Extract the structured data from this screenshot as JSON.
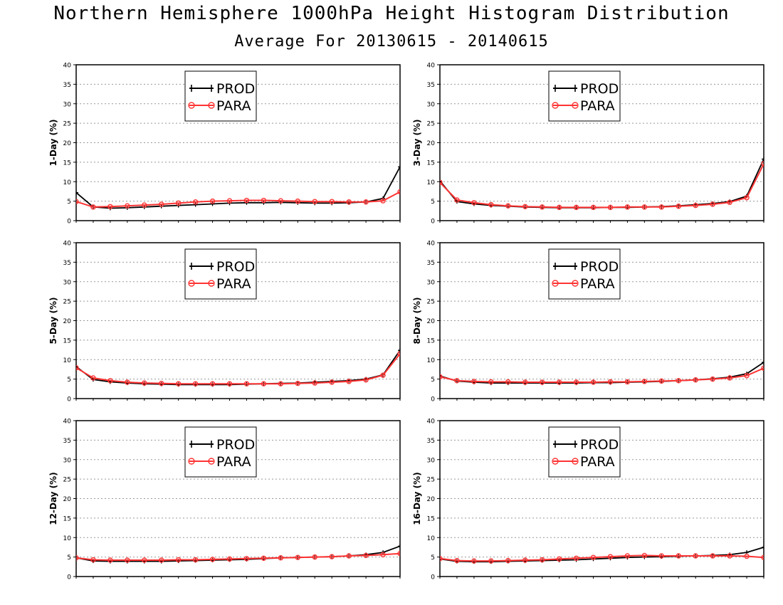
{
  "title": "Northern Hemisphere 1000hPa Height Histogram Distribution",
  "subtitle": "Average For 20130615 - 20140615",
  "chart_data": [
    {
      "type": "line",
      "ylabel": "1-Day (%)",
      "ylim": [
        0,
        40
      ],
      "yticks": [
        0,
        5,
        10,
        15,
        20,
        25,
        30,
        35,
        40
      ],
      "grid": true,
      "legend_position": "top-center",
      "x": [
        1,
        2,
        3,
        4,
        5,
        6,
        7,
        8,
        9,
        10,
        11,
        12,
        13,
        14,
        15,
        16,
        17,
        18,
        19,
        20
      ],
      "series": [
        {
          "name": "PROD",
          "color": "#000000",
          "marker": "plus",
          "values": [
            7.2,
            3.5,
            3.2,
            3.3,
            3.5,
            3.7,
            3.9,
            4.1,
            4.3,
            4.5,
            4.6,
            4.6,
            4.7,
            4.6,
            4.5,
            4.5,
            4.6,
            4.8,
            5.7,
            13.8
          ]
        },
        {
          "name": "PARA",
          "color": "#ff3333",
          "marker": "circle",
          "values": [
            4.9,
            3.5,
            3.6,
            3.8,
            4.0,
            4.2,
            4.5,
            4.8,
            5.0,
            5.1,
            5.2,
            5.2,
            5.1,
            5.0,
            4.9,
            4.9,
            4.8,
            4.8,
            5.1,
            7.4
          ]
        }
      ]
    },
    {
      "type": "line",
      "ylabel": "3-Day (%)",
      "ylim": [
        0,
        40
      ],
      "yticks": [
        0,
        5,
        10,
        15,
        20,
        25,
        30,
        35,
        40
      ],
      "grid": true,
      "legend_position": "top-center",
      "x": [
        1,
        2,
        3,
        4,
        5,
        6,
        7,
        8,
        9,
        10,
        11,
        12,
        13,
        14,
        15,
        16,
        17,
        18,
        19,
        20
      ],
      "series": [
        {
          "name": "PROD",
          "color": "#000000",
          "marker": "plus",
          "values": [
            10.2,
            4.9,
            4.3,
            3.9,
            3.7,
            3.5,
            3.4,
            3.3,
            3.3,
            3.3,
            3.4,
            3.4,
            3.5,
            3.6,
            3.8,
            4.1,
            4.4,
            4.9,
            6.3,
            15.8
          ]
        },
        {
          "name": "PARA",
          "color": "#ff3333",
          "marker": "circle",
          "values": [
            9.8,
            5.3,
            4.6,
            4.1,
            3.8,
            3.6,
            3.5,
            3.4,
            3.4,
            3.4,
            3.4,
            3.5,
            3.5,
            3.5,
            3.7,
            3.9,
            4.2,
            4.7,
            5.9,
            14.6
          ]
        }
      ]
    },
    {
      "type": "line",
      "ylabel": "5-Day (%)",
      "ylim": [
        0,
        40
      ],
      "yticks": [
        0,
        5,
        10,
        15,
        20,
        25,
        30,
        35,
        40
      ],
      "grid": true,
      "legend_position": "top-center",
      "x": [
        1,
        2,
        3,
        4,
        5,
        6,
        7,
        8,
        9,
        10,
        11,
        12,
        13,
        14,
        15,
        16,
        17,
        18,
        19,
        20
      ],
      "series": [
        {
          "name": "PROD",
          "color": "#000000",
          "marker": "plus",
          "values": [
            8.2,
            4.9,
            4.3,
            4.0,
            3.8,
            3.7,
            3.6,
            3.6,
            3.6,
            3.6,
            3.7,
            3.8,
            3.9,
            4.0,
            4.2,
            4.4,
            4.6,
            5.0,
            6.1,
            12.4
          ]
        },
        {
          "name": "PARA",
          "color": "#ff3333",
          "marker": "circle",
          "values": [
            7.9,
            5.3,
            4.6,
            4.2,
            4.0,
            3.9,
            3.8,
            3.8,
            3.8,
            3.8,
            3.8,
            3.8,
            3.8,
            3.9,
            4.0,
            4.2,
            4.4,
            4.8,
            6.0,
            11.5
          ]
        }
      ]
    },
    {
      "type": "line",
      "ylabel": "8-Day (%)",
      "ylim": [
        0,
        40
      ],
      "yticks": [
        0,
        5,
        10,
        15,
        20,
        25,
        30,
        35,
        40
      ],
      "grid": true,
      "legend_position": "top-center",
      "x": [
        1,
        2,
        3,
        4,
        5,
        6,
        7,
        8,
        9,
        10,
        11,
        12,
        13,
        14,
        15,
        16,
        17,
        18,
        19,
        20
      ],
      "series": [
        {
          "name": "PROD",
          "color": "#000000",
          "marker": "plus",
          "values": [
            5.8,
            4.5,
            4.2,
            4.0,
            4.0,
            4.0,
            4.0,
            4.0,
            4.0,
            4.1,
            4.1,
            4.2,
            4.3,
            4.4,
            4.6,
            4.8,
            5.1,
            5.5,
            6.4,
            9.3
          ]
        },
        {
          "name": "PARA",
          "color": "#ff3333",
          "marker": "circle",
          "values": [
            5.6,
            4.6,
            4.4,
            4.3,
            4.3,
            4.2,
            4.2,
            4.2,
            4.2,
            4.2,
            4.3,
            4.3,
            4.4,
            4.5,
            4.6,
            4.8,
            5.0,
            5.3,
            5.9,
            7.8
          ]
        }
      ]
    },
    {
      "type": "line",
      "ylabel": "12-Day (%)",
      "ylim": [
        0,
        40
      ],
      "yticks": [
        0,
        5,
        10,
        15,
        20,
        25,
        30,
        35,
        40
      ],
      "grid": true,
      "legend_position": "top-center",
      "x": [
        1,
        2,
        3,
        4,
        5,
        6,
        7,
        8,
        9,
        10,
        11,
        12,
        13,
        14,
        15,
        16,
        17,
        18,
        19,
        20
      ],
      "series": [
        {
          "name": "PROD",
          "color": "#000000",
          "marker": "plus",
          "values": [
            4.8,
            4.0,
            3.9,
            3.9,
            3.9,
            3.9,
            4.0,
            4.1,
            4.2,
            4.3,
            4.4,
            4.6,
            4.8,
            4.9,
            5.0,
            5.1,
            5.3,
            5.6,
            6.2,
            7.8
          ]
        },
        {
          "name": "PARA",
          "color": "#ff3333",
          "marker": "circle",
          "values": [
            4.8,
            4.3,
            4.2,
            4.2,
            4.2,
            4.2,
            4.3,
            4.3,
            4.4,
            4.5,
            4.6,
            4.7,
            4.8,
            4.9,
            5.0,
            5.1,
            5.3,
            5.4,
            5.6,
            5.9
          ]
        }
      ]
    },
    {
      "type": "line",
      "ylabel": "16-Day (%)",
      "ylim": [
        0,
        40
      ],
      "yticks": [
        0,
        5,
        10,
        15,
        20,
        25,
        30,
        35,
        40
      ],
      "grid": true,
      "legend_position": "top-center",
      "x": [
        1,
        2,
        3,
        4,
        5,
        6,
        7,
        8,
        9,
        10,
        11,
        12,
        13,
        14,
        15,
        16,
        17,
        18,
        19,
        20
      ],
      "series": [
        {
          "name": "PROD",
          "color": "#000000",
          "marker": "plus",
          "values": [
            4.5,
            3.9,
            3.8,
            3.8,
            3.9,
            4.0,
            4.1,
            4.2,
            4.3,
            4.5,
            4.7,
            4.9,
            5.0,
            5.1,
            5.2,
            5.3,
            5.4,
            5.6,
            6.2,
            7.5
          ]
        },
        {
          "name": "PARA",
          "color": "#ff3333",
          "marker": "circle",
          "values": [
            4.6,
            4.1,
            4.0,
            4.0,
            4.1,
            4.2,
            4.3,
            4.5,
            4.7,
            4.9,
            5.1,
            5.3,
            5.4,
            5.3,
            5.3,
            5.3,
            5.3,
            5.3,
            5.2,
            4.9
          ]
        }
      ]
    }
  ]
}
